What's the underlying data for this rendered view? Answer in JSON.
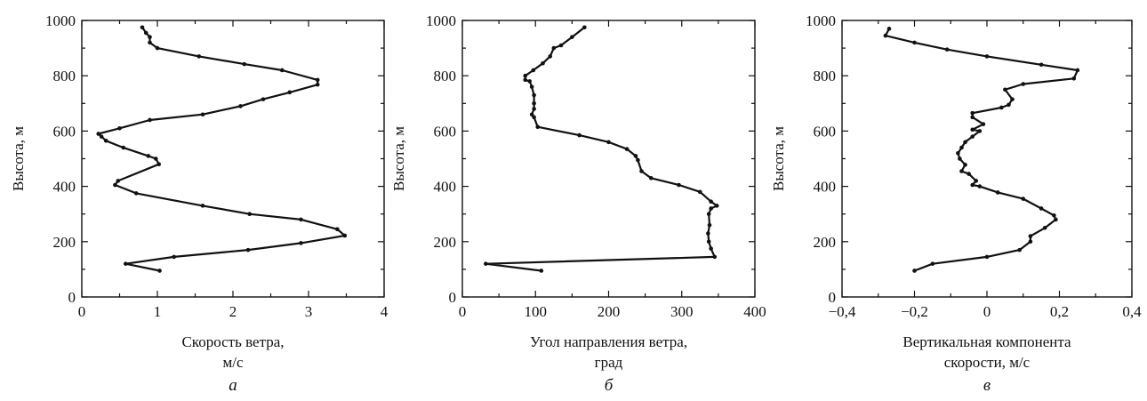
{
  "chart_data": [
    {
      "type": "line",
      "panel_label": "а",
      "xlabel_line1": "Скорость ветра,",
      "xlabel_line2": "м/с",
      "ylabel": "Высота, м",
      "xlim": [
        0,
        4
      ],
      "ylim": [
        0,
        1000
      ],
      "xticks": [
        "0",
        "1",
        "2",
        "3",
        "4"
      ],
      "yticks": [
        "0",
        "200",
        "400",
        "600",
        "800",
        "1000"
      ],
      "x": [
        1.03,
        0.58,
        1.22,
        2.2,
        2.9,
        3.48,
        3.38,
        2.9,
        2.22,
        1.6,
        0.72,
        0.44,
        0.48,
        1.02,
        0.98,
        0.88,
        0.55,
        0.32,
        0.26,
        0.22,
        0.5,
        0.9,
        1.6,
        2.1,
        2.4,
        2.75,
        3.12,
        3.12,
        2.65,
        2.15,
        1.55,
        1.0,
        0.9,
        0.9,
        0.85,
        0.8
      ],
      "y": [
        95,
        120,
        145,
        170,
        195,
        222,
        245,
        280,
        300,
        330,
        375,
        405,
        420,
        480,
        500,
        510,
        540,
        565,
        580,
        590,
        610,
        640,
        660,
        690,
        715,
        740,
        768,
        785,
        820,
        842,
        870,
        900,
        920,
        940,
        955,
        975
      ]
    },
    {
      "type": "line",
      "panel_label": "б",
      "xlabel_line1": "Угол направления ветра,",
      "xlabel_line2": "град",
      "ylabel": "Высота, м",
      "xlim": [
        0,
        400
      ],
      "ylim": [
        0,
        1000
      ],
      "xticks": [
        "0",
        "100",
        "200",
        "300",
        "400"
      ],
      "yticks": [
        "0",
        "200",
        "400",
        "600",
        "800",
        "1000"
      ],
      "x": [
        108,
        32,
        345,
        340,
        337,
        336,
        338,
        337,
        340,
        348,
        340,
        325,
        296,
        258,
        245,
        240,
        237,
        225,
        200,
        160,
        103,
        98,
        95,
        98,
        98,
        98,
        95,
        92,
        86,
        86,
        97,
        110,
        120,
        125,
        135,
        150,
        167
      ],
      "y": [
        95,
        120,
        145,
        175,
        200,
        230,
        260,
        300,
        320,
        330,
        345,
        380,
        405,
        430,
        455,
        495,
        510,
        535,
        560,
        585,
        615,
        650,
        660,
        680,
        700,
        730,
        760,
        780,
        785,
        800,
        820,
        845,
        870,
        900,
        910,
        940,
        975
      ]
    },
    {
      "type": "line",
      "panel_label": "в",
      "xlabel_line1": "Вертикальная компонента",
      "xlabel_line2": "скорости, м/с",
      "ylabel": "Высота, м",
      "xlim": [
        -0.4,
        0.4
      ],
      "ylim": [
        0,
        1000
      ],
      "xticks": [
        "−0,4",
        "−0,2",
        "0",
        "0,2",
        "0,4"
      ],
      "yticks": [
        "0",
        "200",
        "400",
        "600",
        "800",
        "1000"
      ],
      "x": [
        -0.2,
        -0.15,
        0.0,
        0.09,
        0.12,
        0.12,
        0.16,
        0.19,
        0.185,
        0.15,
        0.1,
        0.03,
        -0.02,
        -0.04,
        -0.03,
        -0.05,
        -0.07,
        -0.06,
        -0.075,
        -0.08,
        -0.07,
        -0.06,
        -0.04,
        -0.02,
        -0.04,
        -0.01,
        -0.04,
        -0.04,
        0.04,
        0.06,
        0.07,
        0.05,
        0.1,
        0.24,
        0.25,
        0.15,
        0.0,
        -0.11,
        -0.2,
        -0.28,
        -0.27
      ],
      "y": [
        95,
        120,
        145,
        170,
        200,
        220,
        250,
        280,
        295,
        320,
        355,
        378,
        400,
        405,
        420,
        445,
        455,
        478,
        500,
        520,
        540,
        560,
        580,
        600,
        605,
        625,
        650,
        665,
        685,
        695,
        715,
        750,
        770,
        790,
        820,
        840,
        870,
        895,
        920,
        945,
        970
      ]
    }
  ]
}
